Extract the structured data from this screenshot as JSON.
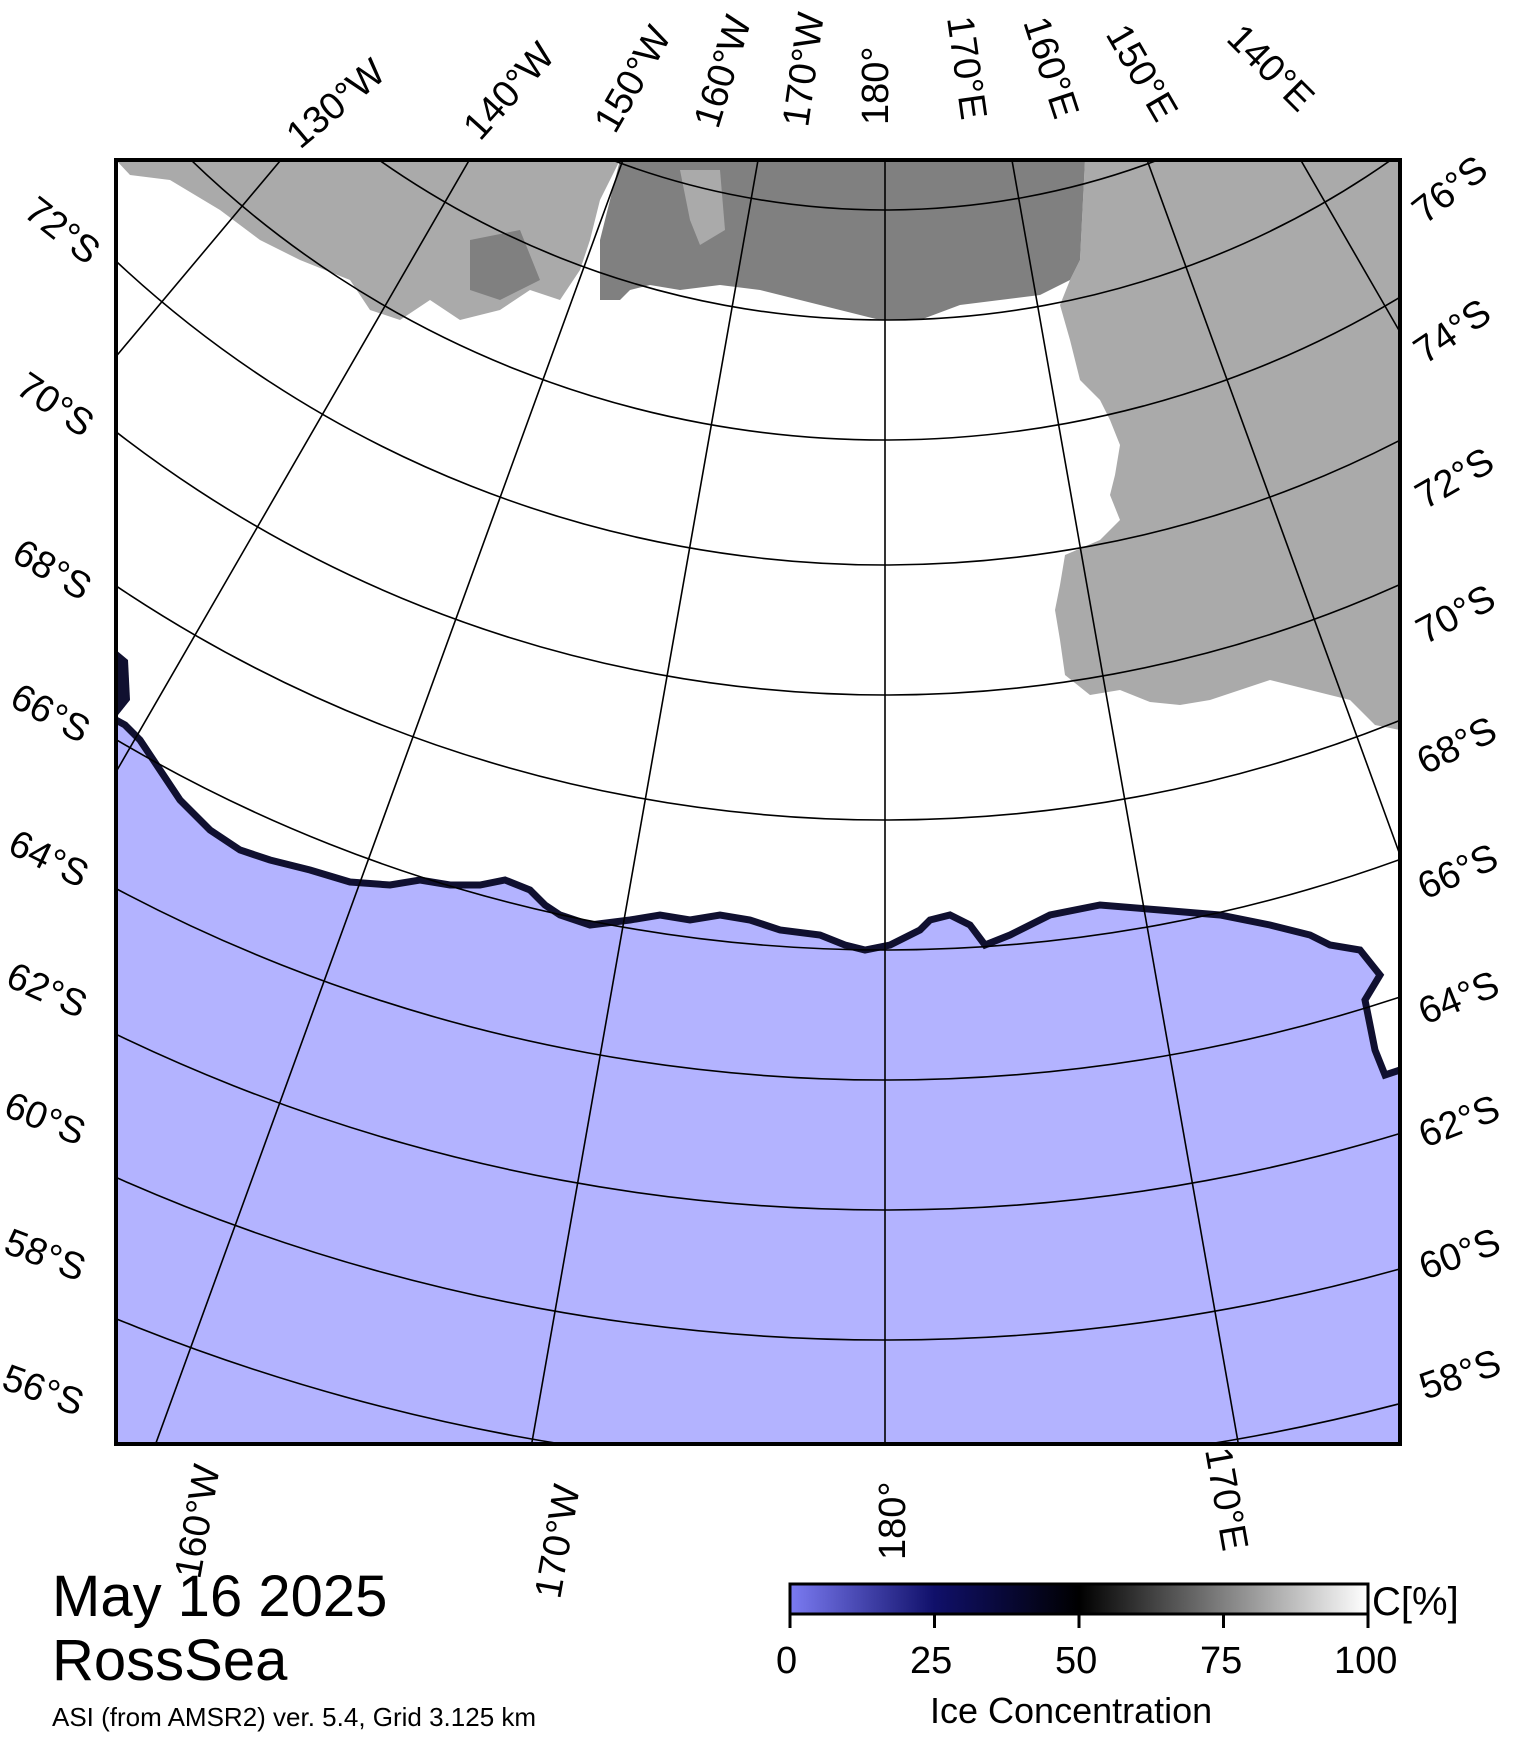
{
  "map": {
    "date": "May 16 2025",
    "region": "RossSea",
    "product": "ASI (from AMSR2) ver. 5.4,  Grid 3.125 km",
    "colors": {
      "ocean": "#b3b3ff",
      "ice": "#ffffff",
      "land": "#aaaaaa",
      "ice_shelf": "#808080",
      "coast_dark": "#101030"
    },
    "top_lon_labels": [
      "130°W",
      "140°W",
      "150°W",
      "160°W",
      "170°W",
      "180°",
      "170°E",
      "160°E",
      "150°E",
      "140°E"
    ],
    "bottom_lon_labels": [
      "160°W",
      "170°W",
      "180°",
      "170°E"
    ],
    "left_lat_labels": [
      "72°S",
      "70°S",
      "68°S",
      "66°S",
      "64°S",
      "62°S",
      "60°S",
      "58°S",
      "56°S"
    ],
    "right_lat_labels": [
      "76°S",
      "74°S",
      "72°S",
      "70°S",
      "68°S",
      "66°S",
      "64°S",
      "62°S",
      "60°S",
      "58°S"
    ]
  },
  "colorbar": {
    "title": "Ice Concentration",
    "unit": "C[%]",
    "ticks": [
      "0",
      "25",
      "50",
      "75",
      "100"
    ],
    "stops": [
      {
        "value": 0,
        "color": "#7b7bf2"
      },
      {
        "value": 25,
        "color": "#10106a"
      },
      {
        "value": 50,
        "color": "#000000"
      },
      {
        "value": 75,
        "color": "#808080"
      },
      {
        "value": 100,
        "color": "#ffffff"
      }
    ]
  }
}
